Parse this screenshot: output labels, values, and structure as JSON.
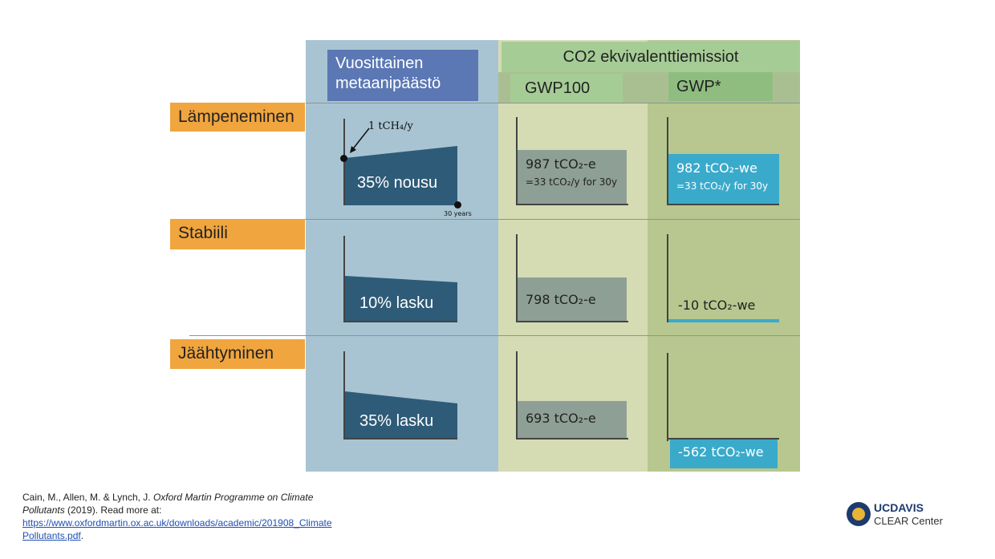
{
  "colors": {
    "blue_column": "#a8c4d2",
    "beige_column": "#d5dbb3",
    "green_column": "#b7c78f",
    "orange_label": "#f0a53e",
    "header_blue": "#5b78b4",
    "header_green": "#a6cc96",
    "trapezoid": "#2e5b78",
    "gwp100_box": "#8e9f95",
    "gwpstar_box": "#3aaacb"
  },
  "headers": {
    "methane": "Vuosittainen metaanipäästö",
    "co2_equivalent": "CO2 ekvivalenttiemissiot",
    "gwp100": "GWP100",
    "gwpstar": "GWP*"
  },
  "annotations": {
    "rate": "1 tCH₄/y",
    "duration": "30 years"
  },
  "rows": [
    {
      "label": "Lämpeneminen",
      "methane_change": "35% nousu",
      "gwp100_value": "987 tCO₂-e",
      "gwp100_note": "=33 tCO₂/y for 30y",
      "gwpstar_value": "982 tCO₂-we",
      "gwpstar_note": "=33 tCO₂/y for 30y"
    },
    {
      "label": "Stabiili",
      "methane_change": "10% lasku",
      "gwp100_value": "798 tCO₂-e",
      "gwpstar_value": "-10 tCO₂-we"
    },
    {
      "label": "Jäähtyminen",
      "methane_change": "35% lasku",
      "gwp100_value": "693 tCO₂-e",
      "gwpstar_value": "-562 tCO₂-we"
    }
  ],
  "citation": {
    "text": "Cain, M., Allen, M. & Lynch, J.",
    "title": "Oxford Martin Programme on Climate Pollutants",
    "year_text": "(2019). Read more at:",
    "link": "https://www.oxfordmartin.ox.ac.uk/downloads/academic/201908_ClimatePollutants.pdf",
    "period": "."
  },
  "logo": {
    "line1": "UCDAVIS",
    "line2": "CLEAR Center"
  }
}
